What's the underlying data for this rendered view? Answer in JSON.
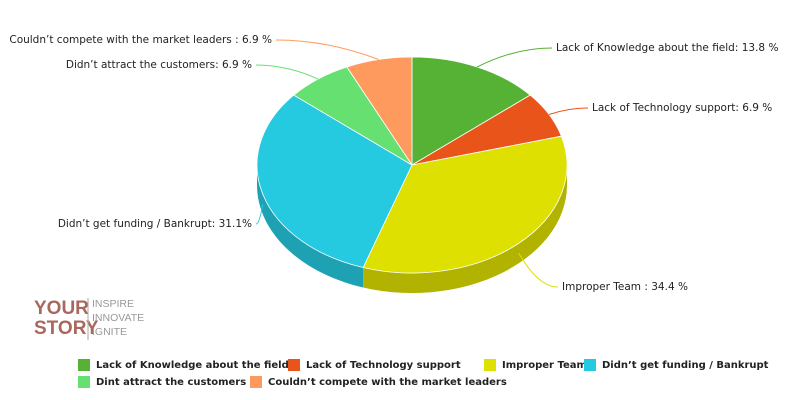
{
  "chart_data": {
    "type": "pie",
    "categories": [
      "Lack of Knowledge about the field",
      "Lack of Technology support",
      "Improper Team",
      "Didn’t get funding / Bankrupt",
      "Dint attract the customers",
      "Couldn’t compete with the market leaders"
    ],
    "values": [
      13.8,
      6.9,
      34.4,
      31.1,
      6.9,
      6.9
    ],
    "value_labels": [
      "Lack of Knowledge about the field: 13.8 %",
      "Lack of Technology support: 6.9 %",
      "Improper Team : 34.4 %",
      "Didn’t get funding / Bankrupt: 31.1%",
      "Didn’t attract the customers: 6.9 %",
      "Couldn’t compete with the market leaders : 6.9 %"
    ],
    "colors": [
      "#56b234",
      "#e8541a",
      "#dde000",
      "#25c9e0",
      "#66e070",
      "#ff9a5f"
    ],
    "legend": "bottom"
  },
  "watermark": {
    "brand": [
      "YOUR",
      "STORY"
    ],
    "tagline": [
      "INSPIRE",
      "INNOVATE",
      "IGNITE"
    ]
  }
}
